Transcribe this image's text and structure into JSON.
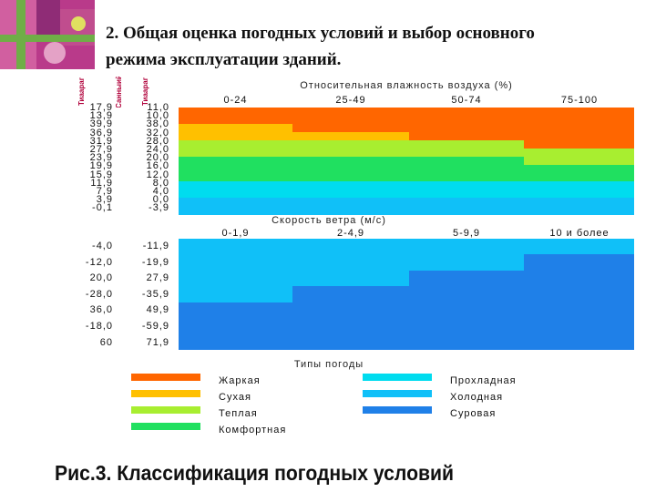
{
  "slide": {
    "title_line1": "2.  Общая оценка погодных условий и выбор основного",
    "title_line2": "режима эксплуатации     зданий."
  },
  "figure": {
    "headers": [
      "Тиаараг",
      "Санныий",
      "Тиаараг"
    ],
    "humidity": {
      "title": "Относительная влажность воздуха (%)",
      "columns": [
        "0-24",
        "25-49",
        "50-74",
        "75-100"
      ],
      "rows": [
        [
          "17,9",
          "11,0"
        ],
        [
          "13,9",
          "10,0"
        ],
        [
          "39,9",
          "38,0"
        ],
        [
          "36,9",
          "32,0"
        ],
        [
          "31,9",
          "28,0"
        ],
        [
          "27,9",
          "24,0"
        ],
        [
          "23,9",
          "20,0"
        ],
        [
          "19,9",
          "16,0"
        ],
        [
          "15,9",
          "12,0"
        ],
        [
          "11,9",
          "8,0"
        ],
        [
          "7,9",
          "4,0"
        ],
        [
          "3,9",
          "0,0"
        ],
        [
          "-0,1",
          "-3,9"
        ]
      ]
    },
    "wind": {
      "title": "Скорость ветра (м/с)",
      "columns": [
        "0-1,9",
        "2-4,9",
        "5-9,9",
        "10 и более"
      ],
      "rows": [
        [
          "-4,0",
          "-11,9"
        ],
        [
          "-12,0",
          "-19,9"
        ],
        [
          "20,0",
          "27,9"
        ],
        [
          "-28,0",
          "-35,9"
        ],
        [
          "36,0",
          "49,9"
        ],
        [
          "-18,0",
          "-59,9"
        ],
        [
          "60",
          "71,9"
        ]
      ]
    },
    "legend": {
      "title": "Типы погоды",
      "items": [
        {
          "label": "Жаркая",
          "color": "#ff6600"
        },
        {
          "label": "Сухая",
          "color": "#ffc000"
        },
        {
          "label": "Теплая",
          "color": "#a8ee30"
        },
        {
          "label": "Комфортная",
          "color": "#20e060"
        },
        {
          "label": "Прохладная",
          "color": "#00dcef"
        },
        {
          "label": "Холодная",
          "color": "#10c0f8"
        },
        {
          "label": "Суровая",
          "color": "#1f80e8"
        }
      ]
    },
    "grid_colors": {
      "hot": "#ff6600",
      "dry": "#ffc000",
      "warm": "#a8ee30",
      "comfort": "#20e060",
      "cool": "#00dcef",
      "cold": "#10c0f8",
      "severe": "#1f80e8",
      "border": "#d8d8ff"
    }
  },
  "caption": "Рис.3. Классификация погодных условий"
}
